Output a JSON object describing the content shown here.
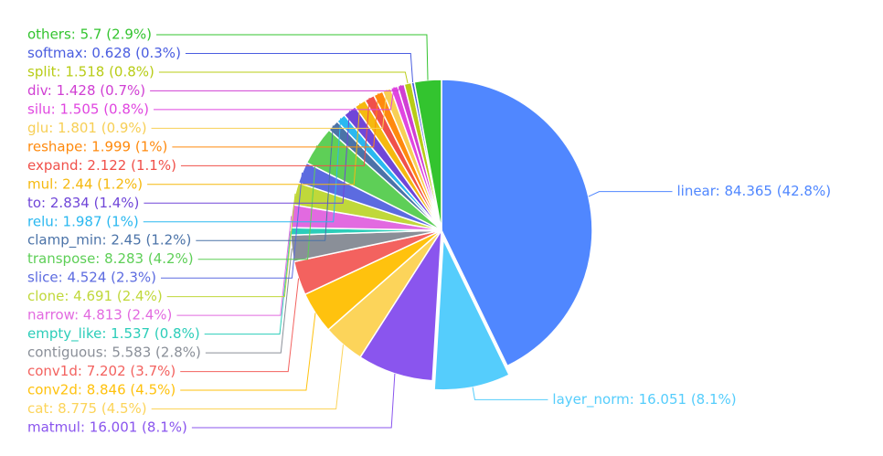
{
  "chart_data": {
    "type": "pie",
    "values": [
      84.365,
      16.051,
      16.001,
      8.775,
      8.846,
      7.202,
      5.583,
      1.537,
      4.813,
      4.691,
      4.524,
      8.283,
      2.45,
      1.987,
      2.834,
      2.44,
      2.122,
      1.999,
      1.801,
      1.505,
      1.428,
      1.518,
      0.628,
      5.7
    ],
    "value_labels": [
      "linear: 84.365 (42.8%)",
      "layer_norm: 16.051 (8.1%)",
      "matmul: 16.001 (8.1%)",
      "cat: 8.775 (4.5%)",
      "conv2d: 8.846 (4.5%)",
      "conv1d: 7.202 (3.7%)",
      "contiguous: 5.583 (2.8%)",
      "empty_like: 1.537 (0.8%)",
      "narrow: 4.813 (2.4%)",
      "clone: 4.691 (2.4%)",
      "slice: 4.524 (2.3%)",
      "transpose: 8.283 (4.2%)",
      "clamp_min: 2.45 (1.2%)",
      "relu: 1.987 (1%)",
      "to: 2.834 (1.4%)",
      "mul: 2.44 (1.2%)",
      "expand: 2.122 (1.1%)",
      "reshape: 1.999 (1%)",
      "glu: 1.801 (0.9%)",
      "silu: 1.505 (0.8%)",
      "div: 1.428 (0.7%)",
      "split: 1.518 (0.8%)",
      "softmax: 0.628 (0.3%)",
      "others: 5.7 (2.9%)"
    ],
    "colors": [
      "#5087ff",
      "#55cdfc",
      "#8a55ee",
      "#fcd45a",
      "#ffc20e",
      "#f3625f",
      "#8a8f98",
      "#2ccdb9",
      "#e26ae0",
      "#c0d83a",
      "#5c6be0",
      "#5ecf57",
      "#4b73a8",
      "#2ab8f0",
      "#7046d8",
      "#f5b90f",
      "#f0504a",
      "#ff8a0e",
      "#f7cf55",
      "#e046e0",
      "#d03fd3",
      "#b8cc16",
      "#4a5de0",
      "#33c42f"
    ]
  }
}
